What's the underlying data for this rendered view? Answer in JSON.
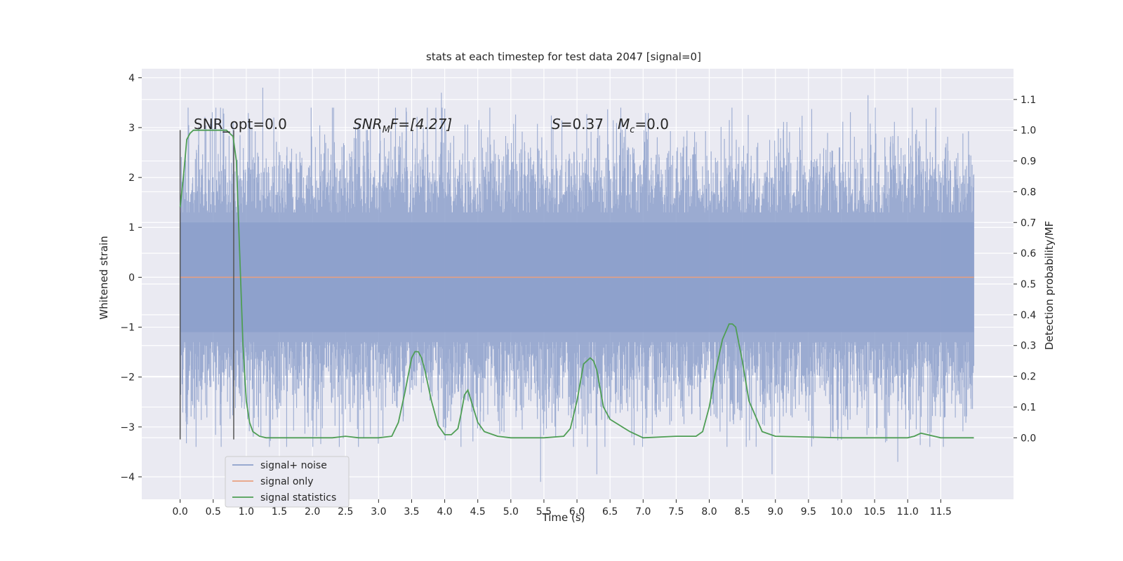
{
  "chart_data": {
    "type": "line",
    "title": "stats at each timestep for test data 2047 [signal=0]",
    "xlabel": "Time (s)",
    "ylabel": "Whitened strain",
    "y2label": "Detection probability/MF",
    "xlim": [
      -0.58,
      12.6
    ],
    "ylim": [
      -4.45,
      4.18
    ],
    "y2lim": [
      -0.2,
      1.2
    ],
    "xticks": [
      "0.0",
      "0.5",
      "1.0",
      "1.5",
      "2.0",
      "2.5",
      "3.0",
      "3.5",
      "4.0",
      "4.5",
      "5.0",
      "5.5",
      "6.0",
      "6.5",
      "7.0",
      "7.5",
      "8.0",
      "8.5",
      "9.0",
      "9.5",
      "10.0",
      "10.5",
      "11.0",
      "11.5"
    ],
    "yticks": [
      "−4",
      "−3",
      "−2",
      "−1",
      "0",
      "1",
      "2",
      "3",
      "4"
    ],
    "y2ticks": [
      "0.0",
      "0.1",
      "0.2",
      "0.3",
      "0.4",
      "0.5",
      "0.6",
      "0.7",
      "0.8",
      "0.9",
      "1.0",
      "1.1"
    ],
    "grid": true,
    "legend_position": "lower-left",
    "colors": {
      "noise": "#8da0cb",
      "signal": "#e9a07f",
      "stats": "#4f9e55",
      "vline": "#555555",
      "background": "#eaeaf2"
    },
    "series": [
      {
        "name": "signal+ noise",
        "description_values": "dense noise band approximately between -2.7 and +2.7 whitened strain, from t=0.0 to t=12.0 s",
        "x_range": [
          0.0,
          12.0
        ],
        "y_envelope": [
          -2.7,
          2.7
        ],
        "notable_extremes": [
          {
            "x": 1.25,
            "y": 3.8
          },
          {
            "x": 3.95,
            "y": 3.7
          },
          {
            "x": 5.45,
            "y": -4.1
          },
          {
            "x": 6.3,
            "y": -3.95
          },
          {
            "x": 8.95,
            "y": -3.95
          },
          {
            "x": 10.4,
            "y": 3.65
          },
          {
            "x": 10.85,
            "y": -3.7
          }
        ]
      },
      {
        "name": "signal only",
        "x": [
          0.0,
          12.0
        ],
        "y": [
          0.0,
          0.0
        ]
      },
      {
        "name": "signal statistics",
        "axis": "right",
        "x": [
          0.0,
          0.05,
          0.1,
          0.15,
          0.2,
          0.3,
          0.5,
          0.7,
          0.75,
          0.8,
          0.85,
          0.9,
          0.95,
          1.0,
          1.05,
          1.1,
          1.2,
          1.3,
          1.5,
          2.0,
          2.3,
          2.5,
          2.7,
          3.0,
          3.2,
          3.3,
          3.4,
          3.5,
          3.55,
          3.6,
          3.65,
          3.7,
          3.8,
          3.9,
          4.0,
          4.1,
          4.2,
          4.25,
          4.3,
          4.35,
          4.4,
          4.5,
          4.6,
          4.8,
          5.0,
          5.5,
          5.8,
          5.9,
          6.0,
          6.1,
          6.2,
          6.25,
          6.3,
          6.4,
          6.5,
          6.8,
          7.0,
          7.5,
          7.8,
          7.9,
          8.0,
          8.1,
          8.2,
          8.3,
          8.35,
          8.4,
          8.5,
          8.6,
          8.8,
          9.0,
          10.0,
          11.0,
          11.1,
          11.2,
          11.3,
          11.5,
          12.0
        ],
        "y": [
          0.75,
          0.85,
          0.97,
          0.99,
          1.0,
          1.0,
          1.0,
          1.0,
          0.99,
          0.98,
          0.9,
          0.6,
          0.3,
          0.12,
          0.05,
          0.02,
          0.005,
          0.0,
          0.0,
          0.0,
          0.0,
          0.005,
          0.0,
          0.0,
          0.005,
          0.05,
          0.15,
          0.26,
          0.28,
          0.28,
          0.26,
          0.22,
          0.12,
          0.04,
          0.01,
          0.01,
          0.03,
          0.08,
          0.14,
          0.155,
          0.12,
          0.05,
          0.02,
          0.005,
          0.0,
          0.0,
          0.005,
          0.03,
          0.12,
          0.24,
          0.26,
          0.25,
          0.22,
          0.1,
          0.06,
          0.02,
          0.0,
          0.005,
          0.005,
          0.02,
          0.1,
          0.22,
          0.32,
          0.37,
          0.37,
          0.36,
          0.25,
          0.12,
          0.02,
          0.005,
          0.0,
          0.0,
          0.005,
          0.015,
          0.01,
          0.0,
          0.0
        ]
      }
    ],
    "vlines": [
      {
        "x": 0.0,
        "y_range": [
          -3.25,
          2.95
        ]
      },
      {
        "x": 0.81,
        "y_range": [
          -3.25,
          2.95
        ]
      }
    ],
    "annotations": [
      {
        "id": "snr_opt",
        "x": 0.2,
        "y": 3.0,
        "text": "SNR_opt=0.0"
      },
      {
        "id": "snr_mf",
        "x": 2.6,
        "y": 3.0,
        "base": "SNR",
        "sub": "M",
        "tail": "F=[4.27]"
      },
      {
        "id": "s_val",
        "x": 5.6,
        "y": 3.0,
        "base": "S",
        "tail": "=0.37"
      },
      {
        "id": "mc_val",
        "x": 6.6,
        "y": 3.0,
        "base": "M",
        "sub": "c",
        "tail": "=0.0"
      }
    ]
  }
}
